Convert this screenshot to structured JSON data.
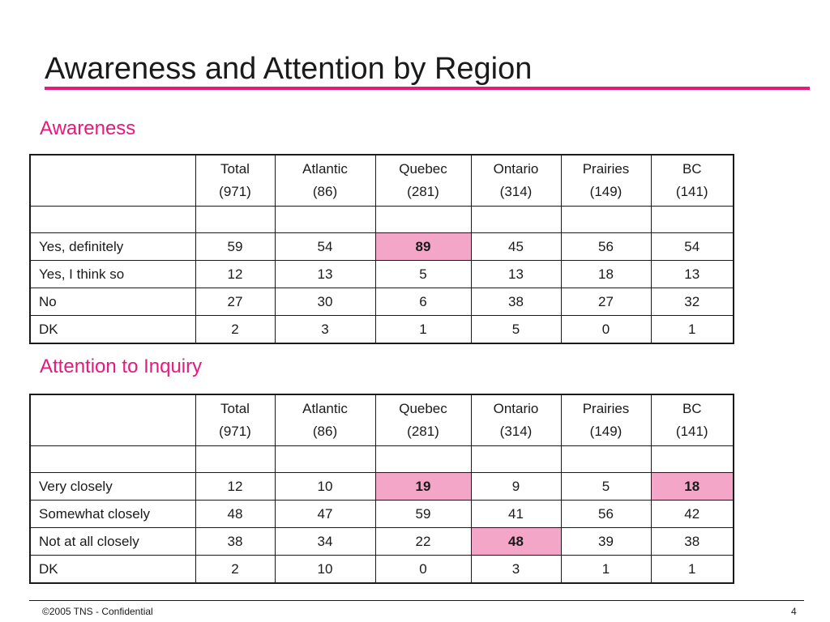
{
  "slide": {
    "title": "Awareness and Attention by Region",
    "accent_color": "#e6197d",
    "highlight_color": "#f4a6c8",
    "footer_text": "©2005 TNS - Confidential",
    "page_number": "4"
  },
  "chart_data": [
    {
      "type": "table",
      "title": "Awareness",
      "columns": [
        {
          "name": "Total",
          "base": "(971)"
        },
        {
          "name": "Atlantic",
          "base": "(86)"
        },
        {
          "name": "Quebec",
          "base": "(281)"
        },
        {
          "name": "Ontario",
          "base": "(314)"
        },
        {
          "name": "Prairies",
          "base": "(149)"
        },
        {
          "name": "BC",
          "base": "(141)"
        }
      ],
      "rows": [
        {
          "label": "Yes, definitely",
          "values": [
            "59",
            "54",
            "89",
            "45",
            "56",
            "54"
          ],
          "highlight": [
            false,
            false,
            true,
            false,
            false,
            false
          ]
        },
        {
          "label": "Yes, I think so",
          "values": [
            "12",
            "13",
            "5",
            "13",
            "18",
            "13"
          ],
          "highlight": [
            false,
            false,
            false,
            false,
            false,
            false
          ]
        },
        {
          "label": "No",
          "values": [
            "27",
            "30",
            "6",
            "38",
            "27",
            "32"
          ],
          "highlight": [
            false,
            false,
            false,
            false,
            false,
            false
          ]
        },
        {
          "label": "DK",
          "values": [
            "2",
            "3",
            "1",
            "5",
            "0",
            "1"
          ],
          "highlight": [
            false,
            false,
            false,
            false,
            false,
            false
          ]
        }
      ]
    },
    {
      "type": "table",
      "title": "Attention to Inquiry",
      "columns": [
        {
          "name": "Total",
          "base": "(971)"
        },
        {
          "name": "Atlantic",
          "base": "(86)"
        },
        {
          "name": "Quebec",
          "base": "(281)"
        },
        {
          "name": "Ontario",
          "base": "(314)"
        },
        {
          "name": "Prairies",
          "base": "(149)"
        },
        {
          "name": "BC",
          "base": "(141)"
        }
      ],
      "rows": [
        {
          "label": "Very closely",
          "values": [
            "12",
            "10",
            "19",
            "9",
            "5",
            "18"
          ],
          "highlight": [
            false,
            false,
            true,
            false,
            false,
            true
          ]
        },
        {
          "label": "Somewhat closely",
          "values": [
            "48",
            "47",
            "59",
            "41",
            "56",
            "42"
          ],
          "highlight": [
            false,
            false,
            false,
            false,
            false,
            false
          ]
        },
        {
          "label": "Not at all closely",
          "values": [
            "38",
            "34",
            "22",
            "48",
            "39",
            "38"
          ],
          "highlight": [
            false,
            false,
            false,
            true,
            false,
            false
          ]
        },
        {
          "label": "DK",
          "values": [
            "2",
            "10",
            "0",
            "3",
            "1",
            "1"
          ],
          "highlight": [
            false,
            false,
            false,
            false,
            false,
            false
          ]
        }
      ]
    }
  ]
}
